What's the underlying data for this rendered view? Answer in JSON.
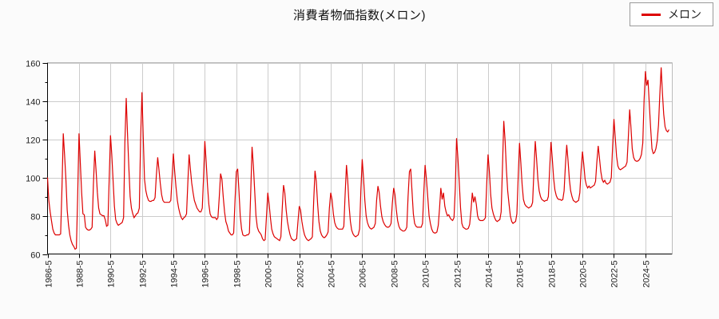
{
  "title": "消費者物価指数(メロン)",
  "legend": {
    "label": "メロン"
  },
  "colors": {
    "line": "#dd0000",
    "grid": "#cccccc",
    "axis": "#000000",
    "frame": "#bbbbbb",
    "tick_text": "#222222",
    "background": "#fbfbfb",
    "plot_background": "#ffffff"
  },
  "chart_data": {
    "type": "line",
    "title": "消費者物価指数(メロン)",
    "series_name": "メロン",
    "x_start": "1986-5",
    "x_end": "2025-11",
    "x_tick_interval_months": 24,
    "x_tick_labels": [
      "1986-5",
      "1988-5",
      "1990-5",
      "1992-5",
      "1994-5",
      "1996-5",
      "1998-5",
      "2000-5",
      "2002-5",
      "2004-5",
      "2006-5",
      "2008-5",
      "2010-5",
      "2012-5",
      "2014-5",
      "2016-5",
      "2018-5",
      "2020-5",
      "2022-5",
      "2024-5"
    ],
    "ylim": [
      60,
      160
    ],
    "y_major_step": 20,
    "y_minor_step": 10,
    "grid": true,
    "legend_position": "top-right",
    "years": [
      {
        "year": 1986,
        "start_month": 5,
        "values": [
          100,
          88,
          82,
          77.5,
          73,
          71,
          70,
          70
        ]
      },
      {
        "year": 1987,
        "start_month": 1,
        "values": [
          70,
          70,
          70.5,
          95,
          123,
          112,
          99,
          83,
          75,
          70,
          67,
          65
        ]
      },
      {
        "year": 1988,
        "start_month": 1,
        "values": [
          64,
          62.5,
          63,
          90,
          123,
          108,
          92,
          81,
          80.5,
          74,
          73,
          72.5
        ]
      },
      {
        "year": 1989,
        "start_month": 1,
        "values": [
          72.5,
          73,
          74,
          96,
          114,
          104,
          92,
          84,
          81,
          80.5,
          80,
          80
        ]
      },
      {
        "year": 1990,
        "start_month": 1,
        "values": [
          78,
          74.5,
          75,
          98,
          122,
          112,
          98,
          85,
          78,
          76,
          75,
          75.5
        ]
      },
      {
        "year": 1991,
        "start_month": 1,
        "values": [
          76,
          76.5,
          79,
          118,
          141.5,
          123,
          105,
          90,
          84,
          81,
          79,
          80
        ]
      },
      {
        "year": 1992,
        "start_month": 1,
        "values": [
          81,
          81.5,
          84,
          120,
          144.5,
          121,
          99,
          93,
          90,
          88,
          87.5,
          87.5
        ]
      },
      {
        "year": 1993,
        "start_month": 1,
        "values": [
          88,
          88,
          89.5,
          101,
          110.5,
          104,
          97,
          91,
          88,
          87,
          87,
          87
        ]
      },
      {
        "year": 1994,
        "start_month": 1,
        "values": [
          87,
          87,
          88,
          100,
          112.5,
          103,
          95,
          88,
          84,
          81,
          79,
          78
        ]
      },
      {
        "year": 1995,
        "start_month": 1,
        "values": [
          79,
          79.5,
          81,
          97,
          112,
          104,
          97,
          92,
          88,
          86,
          84,
          83
        ]
      },
      {
        "year": 1996,
        "start_month": 1,
        "values": [
          82,
          82,
          84,
          100,
          119,
          108,
          96,
          86,
          81,
          79.5,
          79,
          79
        ]
      },
      {
        "year": 1997,
        "start_month": 1,
        "values": [
          79,
          78,
          79,
          90,
          102,
          99,
          90,
          82,
          77,
          75,
          72,
          71
        ]
      },
      {
        "year": 1998,
        "start_month": 1,
        "values": [
          70,
          70,
          71,
          88,
          103,
          104.5,
          93,
          80,
          73,
          70,
          69.5,
          69.5
        ]
      },
      {
        "year": 1999,
        "start_month": 1,
        "values": [
          70,
          70,
          71,
          93,
          116,
          106,
          93,
          80,
          74,
          72,
          71,
          70
        ]
      },
      {
        "year": 2000,
        "start_month": 1,
        "values": [
          68,
          67,
          67.5,
          80,
          92,
          86,
          79,
          73,
          70.5,
          69,
          68.5,
          68
        ]
      },
      {
        "year": 2001,
        "start_month": 1,
        "values": [
          67.5,
          67,
          69,
          84,
          96,
          92,
          83,
          77,
          73,
          70,
          68,
          67.5
        ]
      },
      {
        "year": 2002,
        "start_month": 1,
        "values": [
          67,
          67.5,
          68,
          77,
          85,
          83,
          77,
          73,
          70,
          68.5,
          67.5,
          67
        ]
      },
      {
        "year": 2003,
        "start_month": 1,
        "values": [
          67.5,
          68,
          69,
          88,
          103.5,
          98,
          86,
          77,
          72,
          70,
          69,
          68.5
        ]
      },
      {
        "year": 2004,
        "start_month": 1,
        "values": [
          69,
          70,
          71.5,
          84,
          92,
          88.5,
          81,
          76.5,
          74.5,
          73.5,
          73,
          73
        ]
      },
      {
        "year": 2005,
        "start_month": 1,
        "values": [
          73,
          73,
          74.5,
          91,
          106.5,
          98,
          85,
          77,
          72.5,
          70.5,
          69.5,
          69
        ]
      },
      {
        "year": 2006,
        "start_month": 1,
        "values": [
          69.5,
          70,
          73,
          93,
          109.5,
          100,
          88,
          80,
          76.5,
          74.5,
          73.5,
          73
        ]
      },
      {
        "year": 2007,
        "start_month": 1,
        "values": [
          73.5,
          74,
          76,
          88,
          95.5,
          92,
          85,
          79.5,
          77,
          75.5,
          74.5,
          74
        ]
      },
      {
        "year": 2008,
        "start_month": 1,
        "values": [
          74,
          74.5,
          76,
          86.5,
          94.5,
          91,
          83.5,
          77.5,
          74.5,
          73,
          72.5,
          72
        ]
      },
      {
        "year": 2009,
        "start_month": 1,
        "values": [
          72,
          72.5,
          74,
          90,
          103,
          104.5,
          93,
          81,
          76,
          74.5,
          74,
          74
        ]
      },
      {
        "year": 2010,
        "start_month": 1,
        "values": [
          74,
          74,
          76,
          92,
          106.5,
          99,
          90,
          80,
          76,
          73,
          71.5,
          71
        ]
      },
      {
        "year": 2011,
        "start_month": 1,
        "values": [
          71,
          71.5,
          75,
          84,
          94.5,
          88.5,
          92,
          85,
          82,
          80,
          80.5,
          79
        ]
      },
      {
        "year": 2012,
        "start_month": 1,
        "values": [
          78,
          77.5,
          79,
          94,
          120.5,
          110,
          98,
          84,
          76,
          74,
          73.5,
          73
        ]
      },
      {
        "year": 2013,
        "start_month": 1,
        "values": [
          73,
          73.5,
          75.5,
          83,
          92,
          87,
          90,
          86,
          80,
          78,
          77.5,
          77.5
        ]
      },
      {
        "year": 2014,
        "start_month": 1,
        "values": [
          77.5,
          78,
          79,
          97,
          112,
          103,
          91,
          84,
          81,
          79,
          77.5,
          77
        ]
      },
      {
        "year": 2015,
        "start_month": 1,
        "values": [
          77.5,
          78,
          82,
          106,
          129.5,
          119,
          104,
          93,
          86,
          80,
          77,
          76
        ]
      },
      {
        "year": 2016,
        "start_month": 1,
        "values": [
          76.5,
          77,
          81,
          101,
          118,
          108,
          96,
          88.5,
          86,
          85,
          84.5,
          84
        ]
      },
      {
        "year": 2017,
        "start_month": 1,
        "values": [
          84.5,
          85,
          87,
          104,
          119,
          110,
          99,
          93,
          90,
          88.5,
          88,
          87.5
        ]
      },
      {
        "year": 2018,
        "start_month": 1,
        "values": [
          88,
          88,
          90,
          105,
          118.5,
          110,
          99.5,
          93.5,
          90.5,
          89,
          88.5,
          88.5
        ]
      },
      {
        "year": 2019,
        "start_month": 1,
        "values": [
          88,
          88.5,
          93,
          106,
          117,
          109,
          99,
          93,
          90,
          88,
          87.5,
          87
        ]
      },
      {
        "year": 2020,
        "start_month": 1,
        "values": [
          87.5,
          88,
          92,
          104,
          113.5,
          107,
          99,
          96,
          94.5,
          95.5,
          94.5,
          95
        ]
      },
      {
        "year": 2021,
        "start_month": 1,
        "values": [
          95.5,
          96,
          98,
          108,
          116.5,
          110,
          103,
          99,
          97.5,
          98.5,
          97,
          96.5
        ]
      },
      {
        "year": 2022,
        "start_month": 1,
        "values": [
          97,
          97.5,
          100,
          116,
          130.5,
          121,
          111,
          106,
          104.5,
          104,
          104.5,
          105
        ]
      },
      {
        "year": 2023,
        "start_month": 1,
        "values": [
          105.5,
          106,
          108,
          121,
          135.5,
          126,
          115,
          110.5,
          109,
          108.5,
          108.5,
          109
        ]
      },
      {
        "year": 2024,
        "start_month": 1,
        "values": [
          110,
          112,
          118,
          140,
          155.5,
          148,
          151,
          138,
          126,
          115,
          112.5,
          113
        ]
      },
      {
        "year": 2025,
        "start_month": 1,
        "values": [
          115,
          119,
          127.5,
          143,
          157.5,
          144,
          133,
          126.5,
          124.5,
          123.8,
          125
        ]
      }
    ]
  }
}
